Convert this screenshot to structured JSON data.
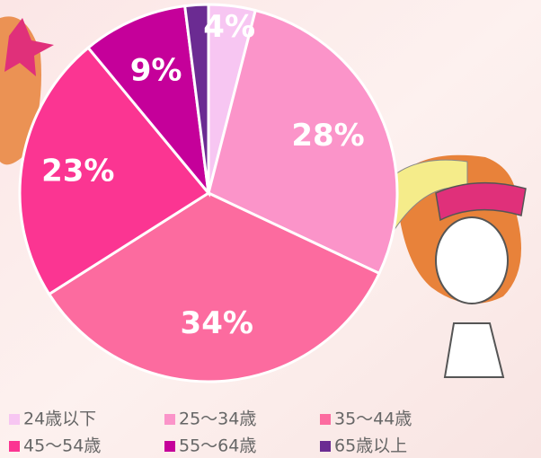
{
  "chart_data": {
    "type": "pie",
    "categories": [
      "24歳以下",
      "25〜34歳",
      "35〜44歳",
      "45〜54歳",
      "55〜64歳",
      "65歳以上"
    ],
    "values": [
      4,
      28,
      34,
      23,
      9,
      2
    ],
    "value_labels": [
      "4%",
      "28%",
      "34%",
      "23%",
      "9%",
      null
    ],
    "colors": [
      "#f7c6f2",
      "#fb94c9",
      "#fc6b9f",
      "#fb3592",
      "#c5009a",
      "#6b2b92"
    ]
  }
}
